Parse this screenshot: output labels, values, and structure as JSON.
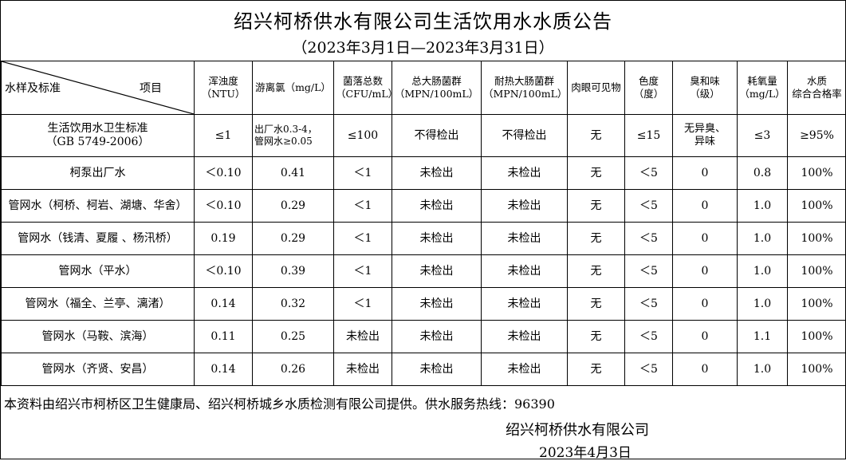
{
  "title": "绍兴柯桥供水有限公司生活饮用水水质公告",
  "period": "（2023年3月1日—2023年3月31日）",
  "header": {
    "left": "水样及标准",
    "right": "项目",
    "cols": [
      [
        "浑浊度",
        "（NTU）"
      ],
      [
        "游离氯（mg/L）",
        ""
      ],
      [
        "菌落总数",
        "（CFU/mL）"
      ],
      [
        "总大肠菌群",
        "（MPN/100mL）"
      ],
      [
        "耐热大肠菌群",
        "（MPN/100mL）"
      ],
      [
        "肉眼可见物",
        ""
      ],
      [
        "色度",
        "（度）"
      ],
      [
        "臭和味",
        "（级）"
      ],
      [
        "耗氧量",
        "（mg/L）"
      ],
      [
        "水质",
        "综合合格率"
      ]
    ]
  },
  "standard": {
    "name": "生活饮用水卫生标准",
    "code": "（GB 5749-2006）",
    "values": [
      "≤1",
      "出厂水0.3-4，",
      "管网水≥0.05",
      "≤100",
      "不得检出",
      "不得检出",
      "无",
      "≤15",
      "无异臭、",
      "异味",
      "≤3",
      "≥95%"
    ]
  },
  "rows": [
    {
      "name": "柯泵出厂水",
      "values": [
        "＜0.10",
        "0.41",
        "＜1",
        "未检出",
        "未检出",
        "无",
        "＜5",
        "0",
        "0.8",
        "100%"
      ]
    },
    {
      "name": "管网水（柯桥、柯岩、湖塘、华舍）",
      "values": [
        "＜0.10",
        "0.29",
        "＜1",
        "未检出",
        "未检出",
        "无",
        "＜5",
        "0",
        "1.0",
        "100%"
      ]
    },
    {
      "name": "管网水（钱清、夏履 、杨汛桥）",
      "values": [
        "0.19",
        "0.29",
        "＜1",
        "未检出",
        "未检出",
        "无",
        "＜5",
        "0",
        "1.0",
        "100%"
      ]
    },
    {
      "name": "管网水（平水）",
      "values": [
        "＜0.10",
        "0.39",
        "＜1",
        "未检出",
        "未检出",
        "无",
        "＜5",
        "0",
        "1.0",
        "100%"
      ]
    },
    {
      "name": "管网水（福全、兰亭、漓渚）",
      "values": [
        "0.14",
        "0.32",
        "＜1",
        "未检出",
        "未检出",
        "无",
        "＜5",
        "0",
        "1.0",
        "100%"
      ]
    },
    {
      "name": "管网水（马鞍、滨海）",
      "values": [
        "0.11",
        "0.25",
        "未检出",
        "未检出",
        "未检出",
        "无",
        "＜5",
        "0",
        "1.1",
        "100%"
      ]
    },
    {
      "name": "管网水（齐贤、安昌）",
      "values": [
        "0.14",
        "0.26",
        "未检出",
        "未检出",
        "未检出",
        "无",
        "＜5",
        "0",
        "1.0",
        "100%"
      ]
    }
  ],
  "footer": {
    "note": "本资料由绍兴市柯桥区卫生健康局、绍兴柯桥城乡水质检测有限公司提供。供水服务热线：96390",
    "company": "绍兴柯桥供水有限公司",
    "date": "2023年4月3日"
  }
}
